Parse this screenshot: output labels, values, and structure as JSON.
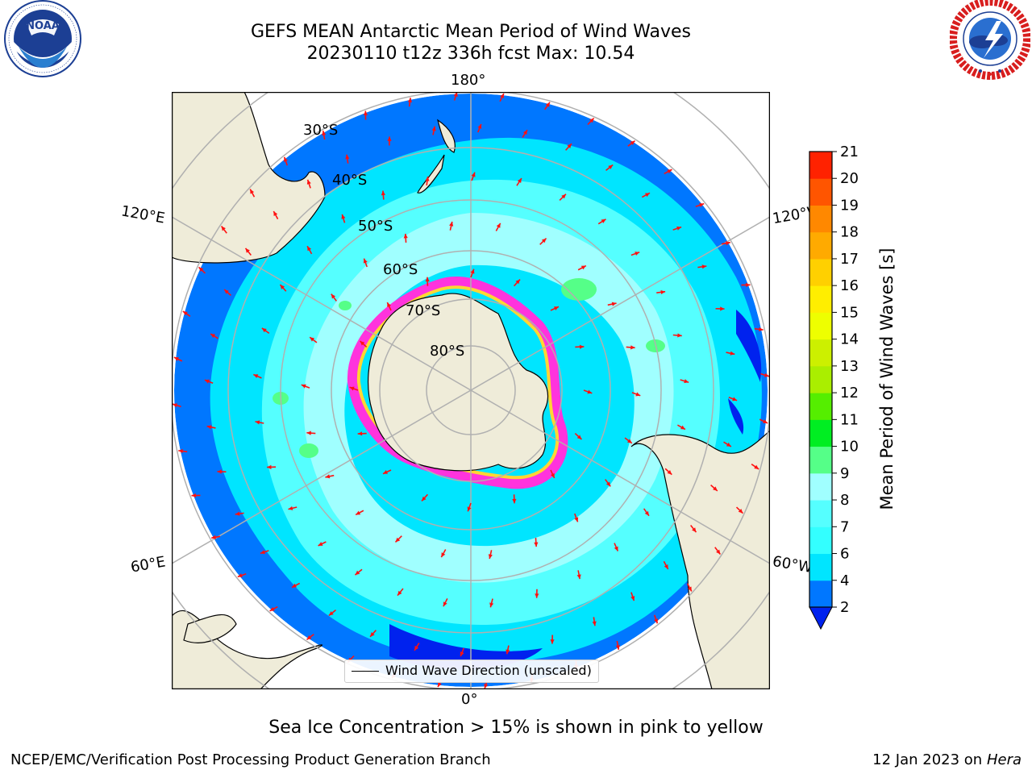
{
  "header": {
    "title_line1": "GEFS MEAN Antarctic Mean Period of Wind Waves",
    "title_line2": "20230110 t12z 336h fcst   Max: 10.54"
  },
  "logos": {
    "left": {
      "text": "NOAA",
      "ring_text": "NATIONAL OCEANIC AND ATMOSPHERIC ADMINISTRATION · U.S. DEPARTMENT OF COMMERCE"
    },
    "right": {
      "ring_text": "NATIONAL WEATHER SERVICE"
    }
  },
  "map": {
    "projection": "south-polar-stereographic",
    "longitude_labels": {
      "top": "180°",
      "bottom": "0°",
      "upper_left": "120°E",
      "upper_right": "120°W",
      "lower_left": "60°E",
      "lower_right": "60°W"
    },
    "latitude_labels": [
      "30°S",
      "40°S",
      "50°S",
      "60°S",
      "70°S",
      "80°S"
    ],
    "legend_label": "Wind Wave Direction (unscaled)",
    "colors": {
      "ocean_deep": "#0077ff",
      "ocean_mid": "#00e5ff",
      "ocean_light": "#55ffff",
      "ocean_pale": "#a0ffff",
      "ocean_green": "#55ff88",
      "land": "#efecd9",
      "ice_pink": "#ff33dd",
      "ice_yellow": "#ffd633",
      "arrow": "#ff1111",
      "gridline": "#b0b0b0"
    }
  },
  "colorbar": {
    "label": "Mean Period of Wind Waves [s]",
    "ticks": [
      "2",
      "4",
      "6",
      "7",
      "8",
      "9",
      "10",
      "11",
      "12",
      "13",
      "14",
      "15",
      "16",
      "17",
      "18",
      "19",
      "20",
      "21"
    ],
    "colors": [
      "#0077ff",
      "#00e5ff",
      "#33ffff",
      "#55ffff",
      "#a0ffff",
      "#55ff88",
      "#00ee22",
      "#55ee00",
      "#aaee00",
      "#ccf000",
      "#eeff00",
      "#ffee00",
      "#ffd000",
      "#ffaa00",
      "#ff8800",
      "#ff5500",
      "#ff2200",
      "#ff0000"
    ],
    "extend_color": "#0022ee"
  },
  "caption": "Sea Ice Concentration > 15% is shown in pink to yellow",
  "footer": {
    "left": "NCEP/EMC/Verification Post Processing Product Generation Branch",
    "right_prefix": "12 Jan 2023 on ",
    "right_machine": "Hera"
  }
}
